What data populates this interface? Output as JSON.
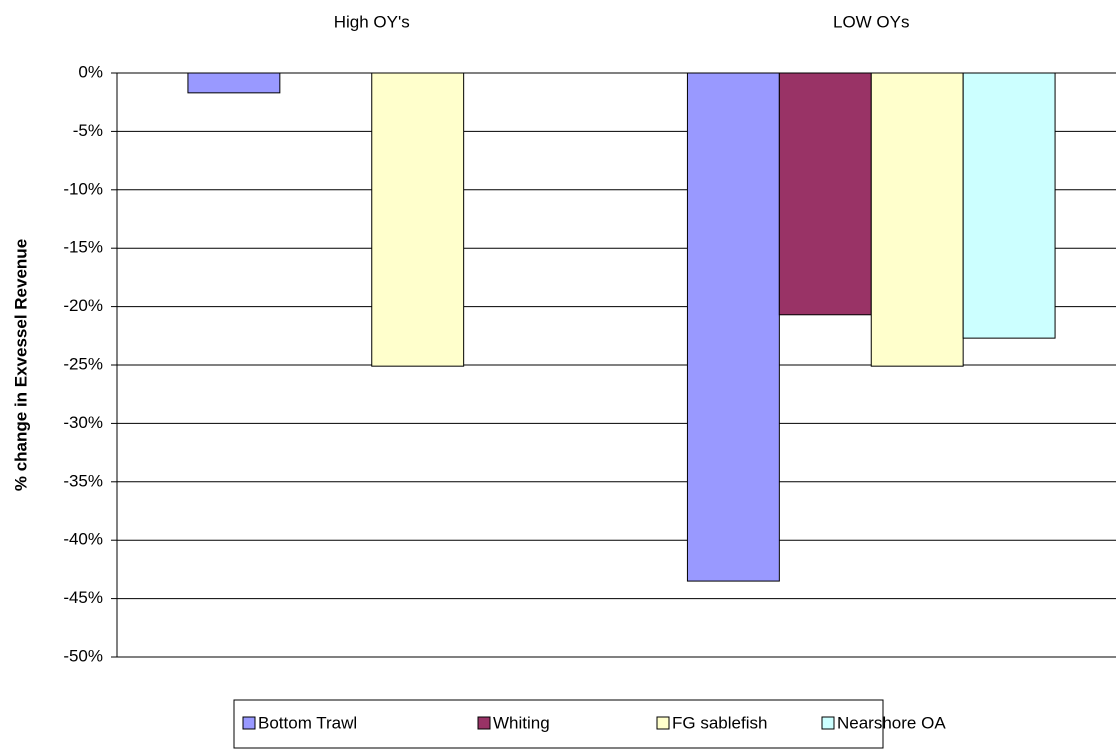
{
  "chart_data": {
    "type": "bar",
    "categories": [
      "High OY's",
      "LOW OYs"
    ],
    "series": [
      {
        "name": "Bottom Trawl",
        "color": "#9999ff",
        "values": [
          -1.7,
          -43.5
        ]
      },
      {
        "name": "Whiting",
        "color": "#993366",
        "values": [
          0,
          -20.7
        ]
      },
      {
        "name": "FG sablefish",
        "color": "#ffffcc",
        "values": [
          -25.1,
          -25.1
        ]
      },
      {
        "name": "Nearshore OA",
        "color": "#ccffff",
        "values": [
          0,
          -22.7
        ]
      }
    ],
    "ylabel": "% change in Exvessel Revenue",
    "ylim": [
      -50,
      0
    ],
    "yticks": [
      {
        "value": 0,
        "label": "0%"
      },
      {
        "value": -5,
        "label": "-5%"
      },
      {
        "value": -10,
        "label": "-10%"
      },
      {
        "value": -15,
        "label": "-15%"
      },
      {
        "value": -20,
        "label": "-20%"
      },
      {
        "value": -25,
        "label": "-25%"
      },
      {
        "value": -30,
        "label": "-30%"
      },
      {
        "value": -35,
        "label": "-35%"
      },
      {
        "value": -40,
        "label": "-40%"
      },
      {
        "value": -45,
        "label": "-45%"
      },
      {
        "value": -50,
        "label": "-50%"
      }
    ],
    "grid": true,
    "legend": "bottom"
  }
}
